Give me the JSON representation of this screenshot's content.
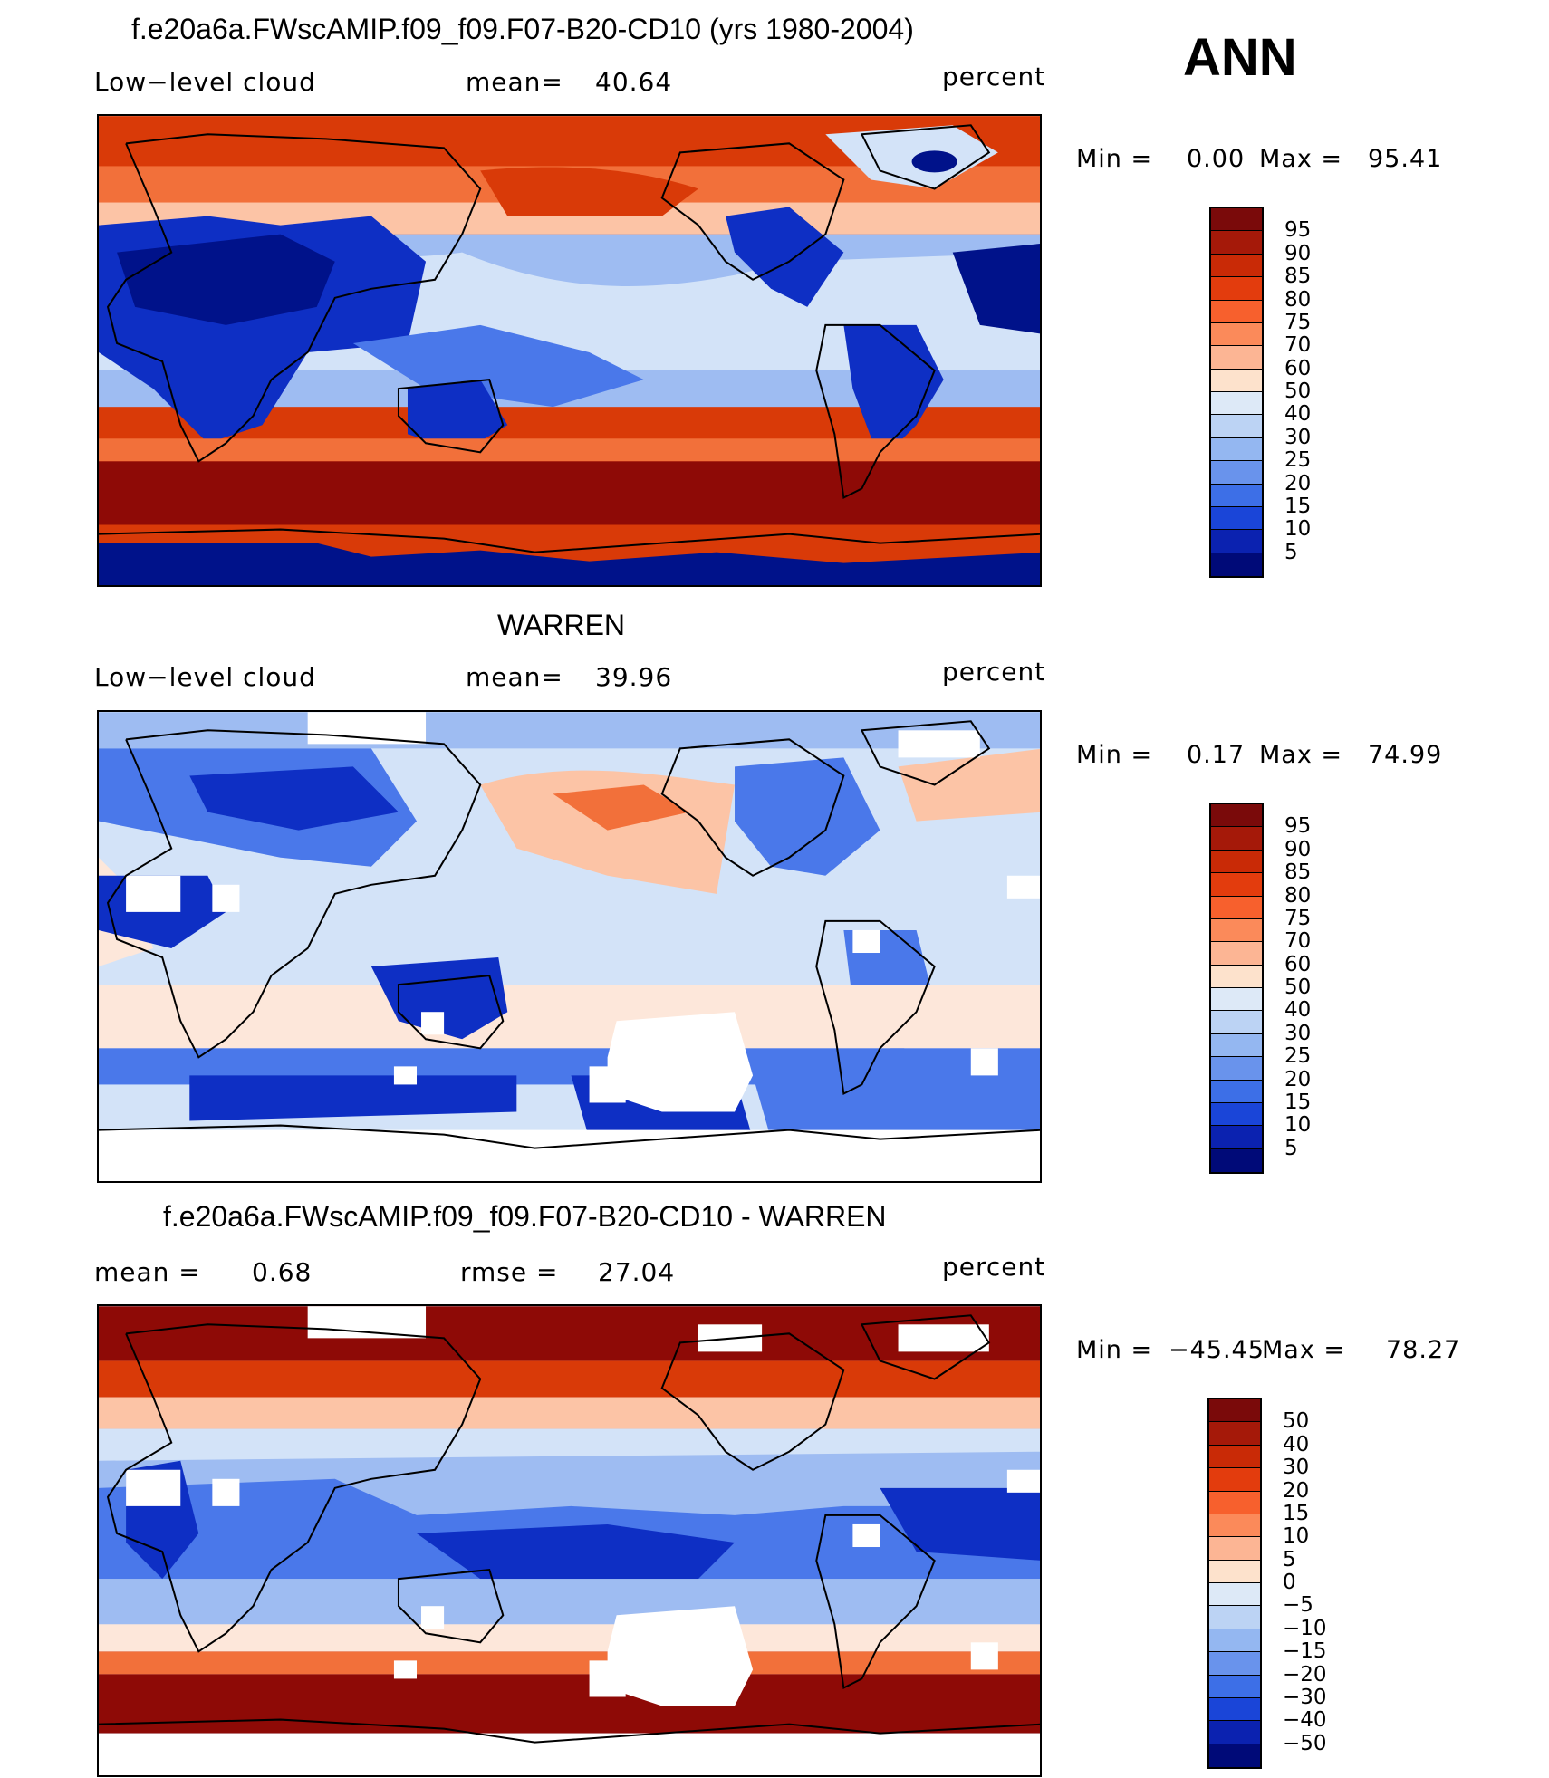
{
  "header": {
    "season": "ANN"
  },
  "panels": [
    {
      "title": "f.e20a6a.FWscAMIP.f09_f09.F07-B20-CD10 (yrs 1980-2004)",
      "left_label": "Low−level cloud",
      "center_label": "mean=",
      "center_value": "40.64",
      "units": "percent",
      "min_label": "Min =",
      "min_value": "0.00",
      "max_label": "Max =",
      "max_value": "95.41",
      "colorbar_labels": [
        "95",
        "90",
        "85",
        "80",
        "75",
        "70",
        "60",
        "50",
        "40",
        "30",
        "25",
        "20",
        "15",
        "10",
        "5"
      ]
    },
    {
      "title": "WARREN",
      "left_label": "Low−level cloud",
      "center_label": "mean=",
      "center_value": "39.96",
      "units": "percent",
      "min_label": "Min =",
      "min_value": "0.17",
      "max_label": "Max =",
      "max_value": "74.99",
      "colorbar_labels": [
        "95",
        "90",
        "85",
        "80",
        "75",
        "70",
        "60",
        "50",
        "40",
        "30",
        "25",
        "20",
        "15",
        "10",
        "5"
      ]
    },
    {
      "title": "f.e20a6a.FWscAMIP.f09_f09.F07-B20-CD10 - WARREN",
      "left_label": "mean =",
      "left_value": "0.68",
      "center_label": "rmse =",
      "center_value": "27.04",
      "units": "percent",
      "min_label": "Min =",
      "min_value": "−45.45",
      "max_label": "Max =",
      "max_value": "78.27",
      "colorbar_labels": [
        "50",
        "40",
        "30",
        "20",
        "15",
        "10",
        "5",
        "0",
        "−5",
        "−10",
        "−15",
        "−20",
        "−30",
        "−40",
        "−50"
      ]
    }
  ],
  "colorbar_colors": [
    "#7a0a0a",
    "#a51909",
    "#c92a06",
    "#e33c0d",
    "#f7602d",
    "#fb8a5a",
    "#fcb594",
    "#fde2cc",
    "#dde9f7",
    "#bcd3f4",
    "#94b7f1",
    "#6993ec",
    "#3d6fe7",
    "#1a45d8",
    "#0b22b0",
    "#000a78"
  ],
  "map_colors": {
    "red_dark": "#8e0a06",
    "red": "#d93a08",
    "orange": "#f2703a",
    "peach": "#fcc4a6",
    "pale": "#fde7da",
    "light_blue": "#d3e3f8",
    "blue_light": "#9ebcf2",
    "blue": "#4a78ea",
    "blue_dark": "#0e2fc4",
    "navy": "#00128a",
    "white": "#ffffff"
  }
}
